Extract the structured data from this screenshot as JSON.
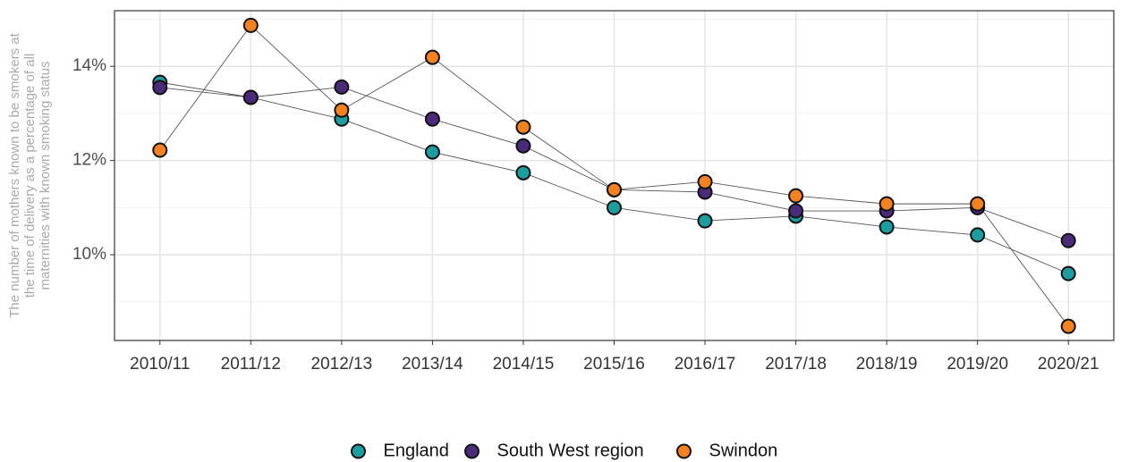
{
  "chart_data": {
    "type": "line",
    "y_label": [
      "The number of mothers known to be smokers at",
      "the time of delivery as a percentage of all",
      "maternities with known smoking status"
    ],
    "categories": [
      "2010/11",
      "2011/12",
      "2012/13",
      "2013/14",
      "2014/15",
      "2015/16",
      "2016/17",
      "2017/18",
      "2018/19",
      "2019/20",
      "2020/21"
    ],
    "series": [
      {
        "name": "England",
        "color": "#1b9ea0",
        "values": [
          13.66,
          13.34,
          12.88,
          12.18,
          11.74,
          11.0,
          10.72,
          10.82,
          10.59,
          10.42,
          9.6
        ]
      },
      {
        "name": "South West region",
        "color": "#4a2a7a",
        "values": [
          13.55,
          13.34,
          13.56,
          12.88,
          12.31,
          11.38,
          11.33,
          10.93,
          10.93,
          11.0,
          10.3
        ]
      },
      {
        "name": "Swindon",
        "color": "#f5821f",
        "values": [
          12.22,
          14.87,
          13.07,
          14.19,
          12.71,
          11.38,
          11.55,
          11.25,
          11.08,
          11.08,
          8.48
        ]
      }
    ],
    "ylim": [
      8.18,
      15.18
    ],
    "yticks": [
      {
        "value": 10,
        "label": "10%"
      },
      {
        "value": 12,
        "label": "12%"
      },
      {
        "value": 14,
        "label": "14%"
      }
    ],
    "grid": true,
    "legend": "bottom"
  }
}
